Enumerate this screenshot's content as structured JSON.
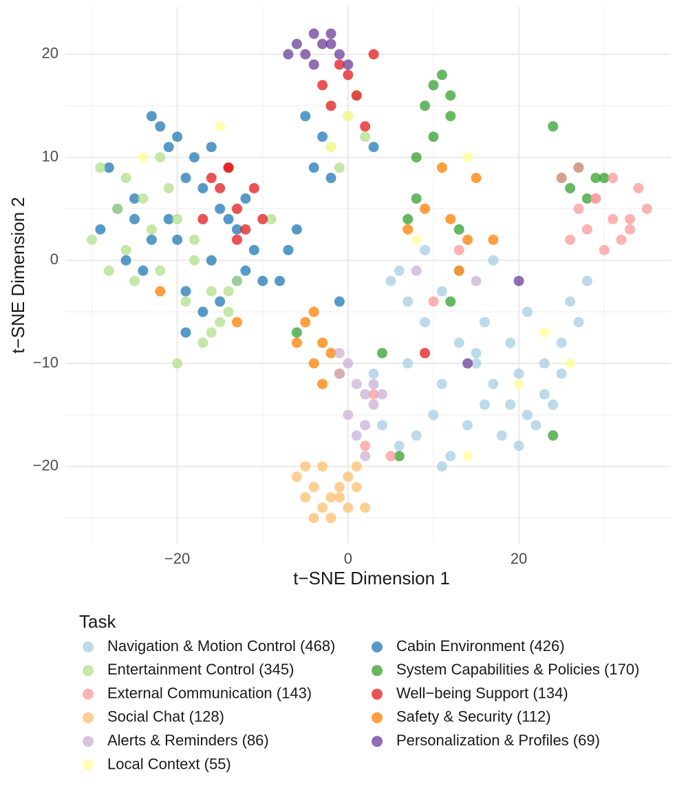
{
  "chart_data": {
    "type": "scatter",
    "x_label": "t−SNE Dimension 1",
    "y_label": "t−SNE Dimension 2",
    "xlim": [
      -33.1,
      37.8
    ],
    "ylim": [
      -27.5,
      24.6
    ],
    "xticks": [
      {
        "value": -20,
        "label": "−20"
      },
      0,
      20
    ],
    "yticks": [
      {
        "value": -20,
        "label": "−20"
      },
      {
        "value": -10,
        "label": "−10"
      },
      0,
      10,
      20
    ],
    "x_minor_ticks": [
      -30,
      -10,
      10,
      30
    ],
    "y_minor_ticks": [
      -25,
      -15,
      -5,
      5,
      15
    ],
    "grid": true,
    "legend_title": "Task",
    "legend_position": "bottom",
    "series": [
      {
        "name": "Navigation & Motion Control (468)",
        "color": "#a6cee3",
        "x": [
          5,
          7,
          9,
          11,
          13,
          15,
          17,
          19,
          21,
          23,
          25,
          27,
          4,
          6,
          8,
          10,
          12,
          14,
          16,
          18,
          20,
          22,
          24,
          26,
          28,
          3,
          7,
          11,
          15,
          19,
          23,
          9,
          13,
          17,
          21,
          25,
          11,
          16,
          6,
          20
        ],
        "y": [
          -2,
          -4,
          -6,
          -3,
          -8,
          -10,
          -12,
          -14,
          -15,
          -13,
          -11,
          -6,
          -16,
          -18,
          -17,
          -15,
          -19,
          -16,
          -14,
          -17,
          -18,
          -16,
          -14,
          -4,
          -2,
          -11,
          -10,
          -12,
          -9,
          -8,
          -10,
          1,
          -1,
          0,
          -5,
          -8,
          -20,
          -6,
          -1,
          -11
        ]
      },
      {
        "name": "Cabin Environment (426)",
        "color": "#1f78b4",
        "x": [
          -29,
          -27,
          -25,
          -23,
          -21,
          -19,
          -17,
          -15,
          -13,
          -11,
          -28,
          -26,
          -24,
          -22,
          -20,
          -18,
          -16,
          -14,
          -12,
          -10,
          -23,
          -21,
          -19,
          -17,
          -15,
          -13,
          -25,
          -20,
          -16,
          -12,
          -8,
          -6,
          -4,
          -2,
          -3,
          -5,
          -7,
          -1,
          -19,
          3
        ],
        "y": [
          3,
          5,
          6,
          2,
          4,
          8,
          7,
          5,
          3,
          1,
          9,
          0,
          -1,
          13,
          12,
          10,
          11,
          4,
          6,
          -2,
          14,
          11,
          -3,
          -5,
          -4,
          -2,
          4,
          2,
          0,
          -1,
          -2,
          3,
          9,
          8,
          12,
          14,
          1,
          -4,
          -7,
          11
        ]
      },
      {
        "name": "Entertainment Control (345)",
        "color": "#b2df8a",
        "x": [
          -30,
          -28,
          -26,
          -24,
          -22,
          -20,
          -18,
          -16,
          -14,
          -29,
          -27,
          -25,
          -23,
          -21,
          -19,
          -17,
          -15,
          -13,
          -26,
          -22,
          -18,
          -20,
          -16,
          -14,
          -9,
          0,
          1,
          -2,
          2,
          -1
        ],
        "y": [
          2,
          -1,
          8,
          6,
          10,
          4,
          0,
          -3,
          -5,
          9,
          5,
          -2,
          3,
          7,
          -4,
          -8,
          -6,
          -2,
          1,
          -1,
          2,
          -10,
          -7,
          -3,
          4,
          14,
          16,
          11,
          12,
          9
        ]
      },
      {
        "name": "System Capabilities & Policies (170)",
        "color": "#33a02c",
        "x": [
          9,
          10,
          11,
          12,
          8,
          10,
          12,
          24,
          25,
          26,
          27,
          28,
          29,
          30,
          8,
          7,
          13,
          4,
          -6,
          6,
          12,
          24
        ],
        "y": [
          15,
          17,
          18,
          14,
          10,
          12,
          16,
          13,
          8,
          7,
          9,
          6,
          8,
          8,
          6,
          4,
          3,
          -9,
          -7,
          -19,
          -4,
          -17
        ]
      },
      {
        "name": "External Communication (143)",
        "color": "#fb9a99",
        "x": [
          25,
          27,
          29,
          31,
          33,
          35,
          26,
          28,
          30,
          32,
          34,
          27,
          29,
          31,
          33,
          5,
          3,
          2,
          10,
          13
        ],
        "y": [
          8,
          9,
          6,
          4,
          3,
          5,
          2,
          3,
          1,
          2,
          7,
          5,
          6,
          8,
          4,
          -19,
          -13,
          -18,
          -4,
          1
        ]
      },
      {
        "name": "Well−being Support (134)",
        "color": "#e31a1c",
        "x": [
          -16,
          -15,
          -14,
          -13,
          -12,
          -11,
          -10,
          -17,
          -13,
          -2,
          -1,
          0,
          1,
          2,
          -3,
          3,
          9,
          -14
        ],
        "y": [
          8,
          7,
          9,
          5,
          3,
          7,
          4,
          4,
          2,
          15,
          19,
          18,
          16,
          13,
          17,
          20,
          -9,
          9
        ]
      },
      {
        "name": "Social Chat (128)",
        "color": "#fdbf6f",
        "x": [
          -6,
          -5,
          -4,
          -3,
          -2,
          -1,
          0,
          1,
          2,
          -5,
          -3,
          -1,
          1,
          -4,
          -2,
          0
        ],
        "y": [
          -21,
          -23,
          -22,
          -24,
          -25,
          -23,
          -21,
          -22,
          -24,
          -20,
          -20,
          -22,
          -20,
          -25,
          -23,
          -24
        ]
      },
      {
        "name": "Safety & Security (112)",
        "color": "#ff7f00",
        "x": [
          -5,
          -4,
          -3,
          -2,
          -1,
          -4,
          -3,
          -6,
          7,
          9,
          12,
          14,
          15,
          17,
          11,
          13,
          -22,
          -13
        ],
        "y": [
          -6,
          -5,
          -8,
          -9,
          -11,
          -10,
          -12,
          -8,
          3,
          5,
          4,
          2,
          8,
          2,
          9,
          -1,
          -3,
          -6
        ]
      },
      {
        "name": "Alerts & Reminders (86)",
        "color": "#cab2d6",
        "x": [
          -1,
          0,
          1,
          2,
          3,
          4,
          0,
          1,
          2,
          -1,
          3,
          2,
          8,
          15
        ],
        "y": [
          -9,
          -10,
          -12,
          -13,
          -14,
          -13,
          -15,
          -17,
          -19,
          -11,
          -12,
          -16,
          -1,
          -2
        ]
      },
      {
        "name": "Personalization & Profiles (69)",
        "color": "#6a3d9a",
        "x": [
          -7,
          -6,
          -5,
          -4,
          -3,
          -2,
          -1,
          0,
          -4,
          -2,
          20,
          14
        ],
        "y": [
          20,
          21,
          20,
          22,
          21,
          22,
          20,
          19,
          19,
          21,
          -2,
          -10
        ]
      },
      {
        "name": "Local Context (55)",
        "color": "#ffff99",
        "x": [
          -15,
          -24,
          0,
          14,
          8,
          20,
          23,
          26,
          14,
          -2
        ],
        "y": [
          13,
          10,
          14,
          -19,
          2,
          -12,
          -7,
          -10,
          10,
          11
        ]
      }
    ]
  }
}
